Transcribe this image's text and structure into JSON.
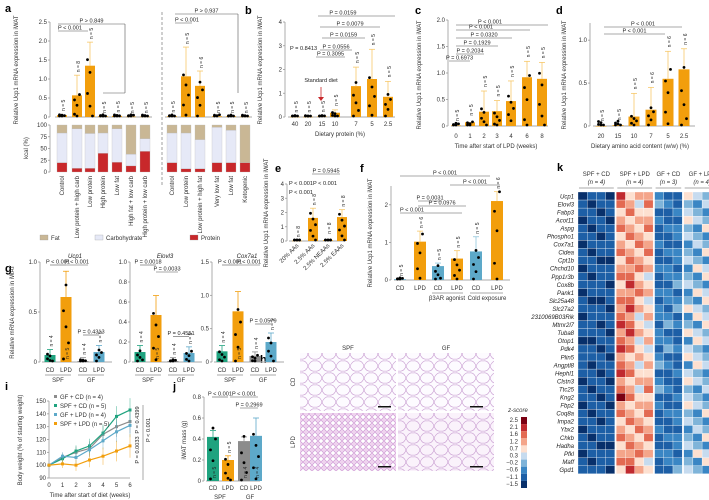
{
  "colors": {
    "orange": "#F29E0C",
    "teal": "#1FA37F",
    "blue": "#5DA9C9",
    "grey": "#8C8C8C",
    "protein": "#C8282B",
    "carb": "#E6E9F7",
    "fat": "#C9B795",
    "errbar": "#F7C86A"
  },
  "chart_data": [
    {
      "panel": "a",
      "type": "bar",
      "ylabel": "Relative Ucp1 mRNA expression in iWAT",
      "ylim": [
        0,
        2.5
      ],
      "yticks": [
        "0",
        "0.5",
        "1.0",
        "1.5",
        "2.0",
        "2.5"
      ],
      "categories_left": [
        "Control",
        "Low protein + high carb",
        "Low protein",
        "High protein",
        "Low fat",
        "High fat + low carb",
        "High protein + low carb"
      ],
      "values_left": [
        0.05,
        0.57,
        1.35,
        0.02,
        0.03,
        0.01,
        0.01
      ],
      "n_left": [
        "n = 5",
        "n = 8",
        "n = 5",
        "n = 5",
        "n = 5",
        "n = 5",
        "n = 5"
      ],
      "categories_right": [
        "Control",
        "Low protein",
        "Low protein + high fat",
        "Very low fat",
        "Low fat",
        "Ketogenic"
      ],
      "values_right": [
        0.02,
        1.07,
        0.82,
        0.02,
        0.02,
        0.01
      ],
      "n_right": [
        "n = 5",
        "n = 5",
        "n = 6",
        "n = 5",
        "n = 5",
        "n = 5"
      ],
      "pvalues_left": [
        "P > 0.849",
        "P < 0.001"
      ],
      "pvalues_right": [
        "P > 0.937",
        "P < 0.001"
      ],
      "composition": {
        "ylabel": "kcal (%)",
        "yticks": [
          "0",
          "25",
          "50",
          "75",
          "100"
        ],
        "legend": [
          "Fat",
          "Carbohydrate",
          "Protein"
        ],
        "left": [
          {
            "protein": 20,
            "carb": 63,
            "fat": 17
          },
          {
            "protein": 8,
            "carb": 84,
            "fat": 8
          },
          {
            "protein": 8,
            "carb": 74,
            "fat": 18
          },
          {
            "protein": 40,
            "carb": 43,
            "fat": 17
          },
          {
            "protein": 21,
            "carb": 71,
            "fat": 8
          },
          {
            "protein": 13,
            "carb": 25,
            "fat": 62
          },
          {
            "protein": 44,
            "carb": 27,
            "fat": 29
          }
        ],
        "right": [
          {
            "protein": 20,
            "carb": 63,
            "fat": 17
          },
          {
            "protein": 7,
            "carb": 76,
            "fat": 17
          },
          {
            "protein": 7,
            "carb": 62,
            "fat": 31
          },
          {
            "protein": 20,
            "carb": 75,
            "fat": 5
          },
          {
            "protein": 20,
            "carb": 69,
            "fat": 11
          },
          {
            "protein": 20,
            "carb": 0,
            "fat": 80
          }
        ]
      }
    },
    {
      "panel": "b",
      "type": "bar",
      "xlabel": "Dietary protein (%)",
      "ylabel": "Relative Ucp1 mRNA expression in iWAT",
      "ylim": [
        0,
        4
      ],
      "yticks": [
        "0",
        "1",
        "2",
        "3",
        "4"
      ],
      "categories": [
        "40",
        "20",
        "15",
        "10",
        "7",
        "5",
        "2.5"
      ],
      "values": [
        0.01,
        0.01,
        0.02,
        0.18,
        1.3,
        1.6,
        0.85
      ],
      "n": [
        "n = 5",
        "n = 5",
        "n = 5",
        "n = 5",
        "n = 5",
        "n = 5",
        "n = 5"
      ],
      "annotation": "Standard diet",
      "pvalues": [
        "P = 0.0159",
        "P = 0.0079",
        "P = 0.0159",
        "P = 0.0556",
        "P = 0.3095",
        "P = 0.8413"
      ]
    },
    {
      "panel": "c",
      "type": "bar",
      "xlabel": "Time after start of LPD (weeks)",
      "ylabel": "Relative Ucp1 mRNA expression in iWAT",
      "ylim": [
        0,
        2.0
      ],
      "yticks": [
        "0",
        "0.5",
        "1.0",
        "1.5",
        "2.0"
      ],
      "categories": [
        "0",
        "1",
        "2",
        "3",
        "4",
        "6",
        "8"
      ],
      "values": [
        0.01,
        0.07,
        0.27,
        0.28,
        0.47,
        0.92,
        0.89
      ],
      "n": [
        "n = 5",
        "n = 5",
        "n = 5",
        "n = 5",
        "n = 5",
        "n = 5",
        "n = 5"
      ],
      "pvalues": [
        "P < 0.001",
        "P < 0.001",
        "P = 0.0320",
        "P = 0.1929",
        "P = 0.2034",
        "P = 0.6973"
      ]
    },
    {
      "panel": "d",
      "type": "bar",
      "xlabel": "Dietary amino acid content (w/w) (%)",
      "ylabel": "Relative Ucp1 mRNA expression in iWAT",
      "ylim": [
        0,
        1.2
      ],
      "yticks": [
        "0",
        "0.5",
        "1.0"
      ],
      "categories": [
        "20",
        "15",
        "10",
        "7",
        "5",
        "2.5"
      ],
      "values": [
        0.0,
        0.01,
        0.11,
        0.19,
        0.55,
        0.66
      ],
      "n": [
        "n = 5",
        "n = 5",
        "n = 5",
        "n = 6",
        "n = 6",
        "n = 6"
      ],
      "pvalues": [
        "P < 0.001",
        "P < 0.001"
      ]
    },
    {
      "panel": "e",
      "type": "bar",
      "ylabel": "Relative Ucp1 mRNA expression in iWAT",
      "ylim": [
        0,
        4
      ],
      "yticks": [
        "0",
        "1",
        "2",
        "3",
        "4"
      ],
      "categories": [
        "20% AAs",
        "2.5% AAs",
        "2.5% NEAAs",
        "2.5% EAAs"
      ],
      "values": [
        0.02,
        1.62,
        0.05,
        1.68
      ],
      "n": [
        "n = 8",
        "n = 8",
        "n = 8",
        "n = 8"
      ],
      "pvalues": [
        "P = 0.5945",
        "P < 0.001",
        "P < 0.001",
        "P < 0.001"
      ]
    },
    {
      "panel": "f",
      "type": "bar",
      "ylabel": "Relative Ucp1 mRNA expression in iWAT",
      "ylim": [
        0,
        2.5
      ],
      "yticks": [
        "0",
        "1",
        "2"
      ],
      "categories": [
        "CD",
        "LPD",
        "CD",
        "LPD",
        "CD",
        "LPD"
      ],
      "groups": [
        "",
        "β3AR agonist",
        "Cold exposure"
      ],
      "values": [
        0.02,
        1.02,
        0.37,
        0.57,
        0.76,
        2.1
      ],
      "n": [
        "n = 5",
        "n = 6",
        "n = 5",
        "n = 5",
        "n = 5",
        "n = 6"
      ],
      "pvalues": [
        "P < 0.001",
        "P < 0.001",
        "P = 0.0031",
        "P = 0.0976",
        "P < 0.001"
      ]
    },
    {
      "panel": "g",
      "type": "bar",
      "ylabel": "Relative mRNA expression in iWAT",
      "subplots": [
        {
          "gene": "Ucp1",
          "ylim": [
            0,
            1.0
          ],
          "yticks": [
            "0",
            "0.5",
            "1.0"
          ],
          "values": [
            0.07,
            0.65,
            0.01,
            0.1
          ],
          "n": [
            "n = 4",
            "n = 5",
            "n = 4",
            "n = 5"
          ],
          "pvalues": [
            "P < 0.001",
            "P < 0.001",
            "P = 0.4313"
          ]
        },
        {
          "gene": "Elovl3",
          "ylim": [
            0,
            1.0
          ],
          "yticks": [
            "0",
            "0.2",
            "0.4",
            "0.6",
            "0.8",
            "1.0"
          ],
          "values": [
            0.1,
            0.47,
            0.01,
            0.09
          ],
          "n": [
            "n = 4",
            "n = 5",
            "n = 4",
            "n = 5"
          ],
          "pvalues": [
            "P = 0.0018",
            "P = 0.0033",
            "P = 0.4551"
          ]
        },
        {
          "gene": "Cox7a1",
          "ylim": [
            0,
            1.5
          ],
          "yticks": [
            "0",
            "0.5",
            "1.0",
            "1.5"
          ],
          "values": [
            0.16,
            0.76,
            0.09,
            0.3
          ],
          "n": [
            "n = 4",
            "n = 5",
            "n = 4",
            "n = 5"
          ],
          "pvalues": [
            "P < 0.001",
            "P < 0.001",
            "P = 0.0579"
          ]
        }
      ],
      "categories": [
        "CD",
        "LPD",
        "CD",
        "LPD"
      ],
      "groups": [
        "SPF",
        "GF"
      ]
    },
    {
      "panel": "h",
      "type": "image",
      "columns": [
        "SPF",
        "GF"
      ],
      "rows": [
        "CD",
        "LPD"
      ]
    },
    {
      "panel": "i",
      "type": "line",
      "xlabel": "Time after start of diet (weeks)",
      "ylabel": "Body weight (% of starting weight)",
      "ylim": [
        90,
        150
      ],
      "yticks": [
        "90",
        "100",
        "110",
        "120",
        "130",
        "140",
        "150"
      ],
      "x": [
        0,
        1,
        2,
        3,
        4,
        5,
        6
      ],
      "series": [
        {
          "name": "GF + CD (n = 4)",
          "color": "#8C8C8C",
          "values": [
            100,
            106,
            110,
            113,
            124,
            130,
            134
          ]
        },
        {
          "name": "SPF + CD (n = 5)",
          "color": "#1FA37F",
          "values": [
            100,
            105,
            111,
            115,
            125,
            138,
            143
          ]
        },
        {
          "name": "GF + LPD (n = 4)",
          "color": "#5DA9C9",
          "values": [
            100,
            107,
            106,
            112,
            119,
            126,
            131
          ]
        },
        {
          "name": "SPF + LPD (n = 5)",
          "color": "#F29E0C",
          "values": [
            100,
            101,
            100,
            104,
            107,
            111,
            115
          ]
        }
      ],
      "pvalues": [
        "P = 0.4399",
        "P = 0.0033",
        "P < 0.001"
      ]
    },
    {
      "panel": "j",
      "type": "bar",
      "ylabel": "iWAT mass (g)",
      "ylim": [
        0,
        0.8
      ],
      "yticks": [
        "0",
        "0.2",
        "0.4",
        "0.6",
        "0.8"
      ],
      "categories": [
        "CD",
        "LPD",
        "CD",
        "LPD"
      ],
      "groups": [
        "SPF",
        "GF"
      ],
      "values": [
        0.42,
        0.2,
        0.38,
        0.43
      ],
      "n": [
        "n = 5",
        "n = 5",
        "n = 4",
        "n = 4"
      ],
      "pvalues": [
        "P < 0.001",
        "P < 0.001",
        "P = 0.2969"
      ]
    },
    {
      "panel": "k",
      "type": "heatmap",
      "groups": [
        {
          "label": "SPF + CD",
          "n": "(n = 4)"
        },
        {
          "label": "SPF + LPD",
          "n": "(n = 4)"
        },
        {
          "label": "GF + CD",
          "n": "(n = 3)"
        },
        {
          "label": "GF + LPD",
          "n": "(n = 4)"
        }
      ],
      "genes": [
        "Ucp1",
        "Elovl3",
        "Fabp3",
        "Acot11",
        "Aspg",
        "Phospho1",
        "Cox7a1",
        "Cidea",
        "Cpt1b",
        "Chchd10",
        "Ppp1r3b",
        "Cox8b",
        "Pank1",
        "Slc25a48",
        "Slc27a2",
        "2310069B03Rik",
        "Mtmr2l7",
        "Tuba8",
        "Otop1",
        "Pdk4",
        "Plin5",
        "Angptl8",
        "Hephl1",
        "Clstn3",
        "Ttc25",
        "Kng2",
        "Fbp2",
        "Coq8a",
        "Impa2",
        "Ybx2",
        "Chkb",
        "Hadha",
        "Pfkl",
        "Maff",
        "Gpd1"
      ],
      "legend_title": "z-score",
      "legend_ticks": [
        "2.5",
        "2.1",
        "1.6",
        "1.2",
        "0.7",
        "0.3",
        "−0.2",
        "−0.6",
        "−1.1",
        "−1.5"
      ]
    }
  ]
}
